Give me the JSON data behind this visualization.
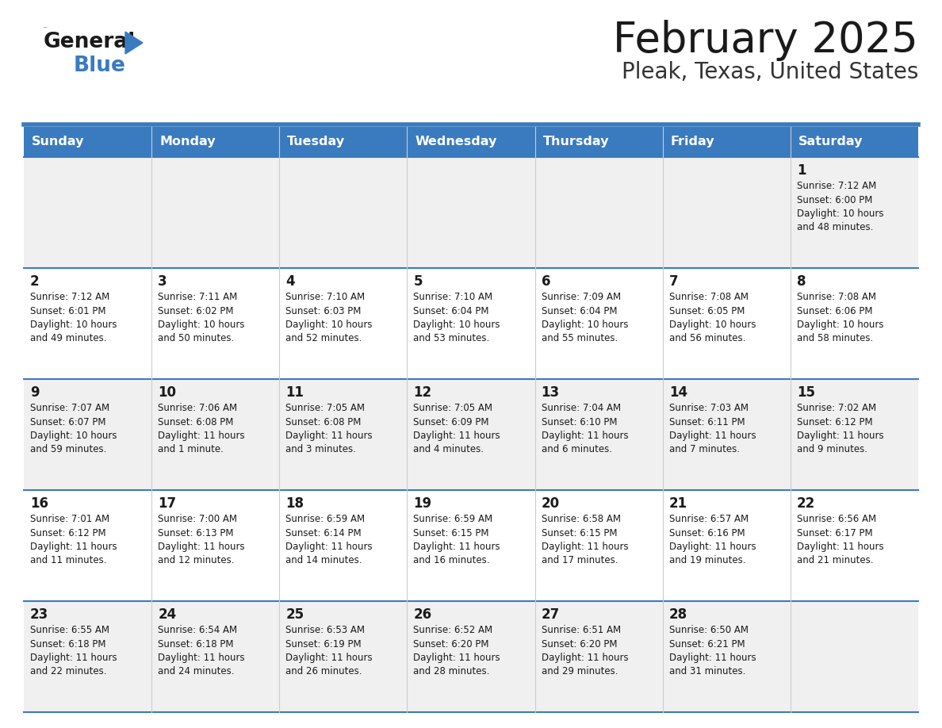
{
  "title": "February 2025",
  "subtitle": "Pleak, Texas, United States",
  "header_color": "#3a7bbf",
  "header_text_color": "#ffffff",
  "cell_bg_row0": "#f0f0f0",
  "cell_bg_row1": "#ffffff",
  "cell_bg_row2": "#f0f0f0",
  "cell_bg_row3": "#ffffff",
  "cell_bg_row4": "#f0f0f0",
  "day_headers": [
    "Sunday",
    "Monday",
    "Tuesday",
    "Wednesday",
    "Thursday",
    "Friday",
    "Saturday"
  ],
  "days": [
    {
      "day": 1,
      "col": 6,
      "row": 0,
      "sunrise": "7:12 AM",
      "sunset": "6:00 PM",
      "daylight": "10 hours and 48 minutes."
    },
    {
      "day": 2,
      "col": 0,
      "row": 1,
      "sunrise": "7:12 AM",
      "sunset": "6:01 PM",
      "daylight": "10 hours and 49 minutes."
    },
    {
      "day": 3,
      "col": 1,
      "row": 1,
      "sunrise": "7:11 AM",
      "sunset": "6:02 PM",
      "daylight": "10 hours and 50 minutes."
    },
    {
      "day": 4,
      "col": 2,
      "row": 1,
      "sunrise": "7:10 AM",
      "sunset": "6:03 PM",
      "daylight": "10 hours and 52 minutes."
    },
    {
      "day": 5,
      "col": 3,
      "row": 1,
      "sunrise": "7:10 AM",
      "sunset": "6:04 PM",
      "daylight": "10 hours and 53 minutes."
    },
    {
      "day": 6,
      "col": 4,
      "row": 1,
      "sunrise": "7:09 AM",
      "sunset": "6:04 PM",
      "daylight": "10 hours and 55 minutes."
    },
    {
      "day": 7,
      "col": 5,
      "row": 1,
      "sunrise": "7:08 AM",
      "sunset": "6:05 PM",
      "daylight": "10 hours and 56 minutes."
    },
    {
      "day": 8,
      "col": 6,
      "row": 1,
      "sunrise": "7:08 AM",
      "sunset": "6:06 PM",
      "daylight": "10 hours and 58 minutes."
    },
    {
      "day": 9,
      "col": 0,
      "row": 2,
      "sunrise": "7:07 AM",
      "sunset": "6:07 PM",
      "daylight": "10 hours and 59 minutes."
    },
    {
      "day": 10,
      "col": 1,
      "row": 2,
      "sunrise": "7:06 AM",
      "sunset": "6:08 PM",
      "daylight": "11 hours and 1 minute."
    },
    {
      "day": 11,
      "col": 2,
      "row": 2,
      "sunrise": "7:05 AM",
      "sunset": "6:08 PM",
      "daylight": "11 hours and 3 minutes."
    },
    {
      "day": 12,
      "col": 3,
      "row": 2,
      "sunrise": "7:05 AM",
      "sunset": "6:09 PM",
      "daylight": "11 hours and 4 minutes."
    },
    {
      "day": 13,
      "col": 4,
      "row": 2,
      "sunrise": "7:04 AM",
      "sunset": "6:10 PM",
      "daylight": "11 hours and 6 minutes."
    },
    {
      "day": 14,
      "col": 5,
      "row": 2,
      "sunrise": "7:03 AM",
      "sunset": "6:11 PM",
      "daylight": "11 hours and 7 minutes."
    },
    {
      "day": 15,
      "col": 6,
      "row": 2,
      "sunrise": "7:02 AM",
      "sunset": "6:12 PM",
      "daylight": "11 hours and 9 minutes."
    },
    {
      "day": 16,
      "col": 0,
      "row": 3,
      "sunrise": "7:01 AM",
      "sunset": "6:12 PM",
      "daylight": "11 hours and 11 minutes."
    },
    {
      "day": 17,
      "col": 1,
      "row": 3,
      "sunrise": "7:00 AM",
      "sunset": "6:13 PM",
      "daylight": "11 hours and 12 minutes."
    },
    {
      "day": 18,
      "col": 2,
      "row": 3,
      "sunrise": "6:59 AM",
      "sunset": "6:14 PM",
      "daylight": "11 hours and 14 minutes."
    },
    {
      "day": 19,
      "col": 3,
      "row": 3,
      "sunrise": "6:59 AM",
      "sunset": "6:15 PM",
      "daylight": "11 hours and 16 minutes."
    },
    {
      "day": 20,
      "col": 4,
      "row": 3,
      "sunrise": "6:58 AM",
      "sunset": "6:15 PM",
      "daylight": "11 hours and 17 minutes."
    },
    {
      "day": 21,
      "col": 5,
      "row": 3,
      "sunrise": "6:57 AM",
      "sunset": "6:16 PM",
      "daylight": "11 hours and 19 minutes."
    },
    {
      "day": 22,
      "col": 6,
      "row": 3,
      "sunrise": "6:56 AM",
      "sunset": "6:17 PM",
      "daylight": "11 hours and 21 minutes."
    },
    {
      "day": 23,
      "col": 0,
      "row": 4,
      "sunrise": "6:55 AM",
      "sunset": "6:18 PM",
      "daylight": "11 hours and 22 minutes."
    },
    {
      "day": 24,
      "col": 1,
      "row": 4,
      "sunrise": "6:54 AM",
      "sunset": "6:18 PM",
      "daylight": "11 hours and 24 minutes."
    },
    {
      "day": 25,
      "col": 2,
      "row": 4,
      "sunrise": "6:53 AM",
      "sunset": "6:19 PM",
      "daylight": "11 hours and 26 minutes."
    },
    {
      "day": 26,
      "col": 3,
      "row": 4,
      "sunrise": "6:52 AM",
      "sunset": "6:20 PM",
      "daylight": "11 hours and 28 minutes."
    },
    {
      "day": 27,
      "col": 4,
      "row": 4,
      "sunrise": "6:51 AM",
      "sunset": "6:20 PM",
      "daylight": "11 hours and 29 minutes."
    },
    {
      "day": 28,
      "col": 5,
      "row": 4,
      "sunrise": "6:50 AM",
      "sunset": "6:21 PM",
      "daylight": "11 hours and 31 minutes."
    }
  ],
  "num_rows": 5,
  "num_cols": 7,
  "row_bg_colors": [
    "#f0f0f0",
    "#ffffff",
    "#f0f0f0",
    "#ffffff",
    "#f0f0f0"
  ],
  "title_color": "#1a1a1a",
  "subtitle_color": "#333333",
  "cell_text_color": "#1a1a1a",
  "row_line_color": "#3a7bbf",
  "col_line_color": "#cccccc"
}
